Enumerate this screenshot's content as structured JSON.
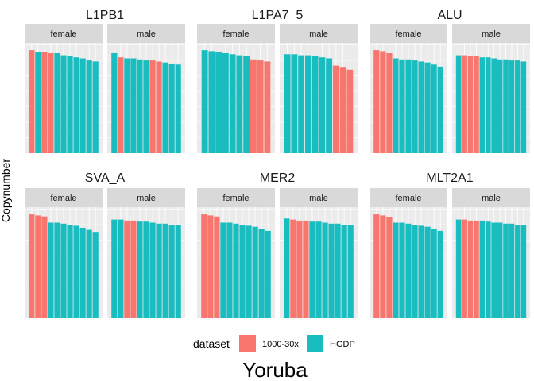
{
  "figure": {
    "title": "Yoruba",
    "ylabel": "Copynumber",
    "legend_title": "dataset",
    "legend_placement": "bottom"
  },
  "colors": {
    "1000-30x": "#F8766D",
    "HGDP": "#19BDC0",
    "panel_bg": "#EBEBEB",
    "strip_bg": "#D9D9D9",
    "grid": "#FFFFFF"
  },
  "chart_data": {
    "type": "bar",
    "note_units": "values are relative copy number, 0 to 1 of each panel's free y range (no ticks printed)",
    "ylim": [
      0,
      1.07
    ],
    "grid": true,
    "series": [
      {
        "name": "1000-30x"
      },
      {
        "name": "HGDP"
      }
    ],
    "facets": [
      {
        "title": "L1PB1",
        "strips": [
          {
            "label": "female",
            "values": [
              1.0,
              0.98,
              0.98,
              0.97,
              0.97,
              0.95,
              0.94,
              0.93,
              0.92,
              0.9,
              0.89
            ],
            "datasets": [
              "1000-30x",
              "HGDP",
              "1000-30x",
              "1000-30x",
              "HGDP",
              "HGDP",
              "HGDP",
              "HGDP",
              "HGDP",
              "HGDP",
              "HGDP"
            ]
          },
          {
            "label": "male",
            "values": [
              0.97,
              0.93,
              0.92,
              0.92,
              0.91,
              0.9,
              0.9,
              0.89,
              0.88,
              0.87,
              0.86
            ],
            "datasets": [
              "HGDP",
              "1000-30x",
              "HGDP",
              "HGDP",
              "HGDP",
              "HGDP",
              "1000-30x",
              "1000-30x",
              "HGDP",
              "HGDP",
              "HGDP"
            ]
          }
        ]
      },
      {
        "title": "L1PA7_5",
        "strips": [
          {
            "label": "female",
            "values": [
              1.0,
              0.99,
              0.98,
              0.97,
              0.96,
              0.95,
              0.94,
              0.91,
              0.9,
              0.89
            ],
            "datasets": [
              "HGDP",
              "HGDP",
              "HGDP",
              "HGDP",
              "HGDP",
              "HGDP",
              "HGDP",
              "1000-30x",
              "1000-30x",
              "1000-30x"
            ]
          },
          {
            "label": "male",
            "values": [
              0.96,
              0.96,
              0.95,
              0.95,
              0.94,
              0.93,
              0.92,
              0.85,
              0.83,
              0.81
            ],
            "datasets": [
              "HGDP",
              "HGDP",
              "HGDP",
              "HGDP",
              "HGDP",
              "HGDP",
              "HGDP",
              "1000-30x",
              "1000-30x",
              "1000-30x"
            ]
          }
        ]
      },
      {
        "title": "ALU",
        "strips": [
          {
            "label": "female",
            "values": [
              1.0,
              0.99,
              0.97,
              0.92,
              0.91,
              0.91,
              0.9,
              0.89,
              0.88,
              0.86,
              0.84
            ],
            "datasets": [
              "1000-30x",
              "1000-30x",
              "1000-30x",
              "HGDP",
              "HGDP",
              "HGDP",
              "HGDP",
              "HGDP",
              "HGDP",
              "HGDP",
              "HGDP"
            ]
          },
          {
            "label": "male",
            "values": [
              0.95,
              0.95,
              0.94,
              0.94,
              0.93,
              0.93,
              0.92,
              0.91,
              0.91,
              0.9,
              0.9,
              0.89
            ],
            "datasets": [
              "HGDP",
              "1000-30x",
              "1000-30x",
              "1000-30x",
              "HGDP",
              "HGDP",
              "HGDP",
              "HGDP",
              "HGDP",
              "HGDP",
              "HGDP",
              "HGDP"
            ]
          }
        ]
      },
      {
        "title": "SVA_A",
        "strips": [
          {
            "label": "female",
            "values": [
              1.0,
              0.99,
              0.98,
              0.92,
              0.92,
              0.91,
              0.9,
              0.89,
              0.87,
              0.85,
              0.83
            ],
            "datasets": [
              "1000-30x",
              "1000-30x",
              "1000-30x",
              "HGDP",
              "HGDP",
              "HGDP",
              "HGDP",
              "HGDP",
              "HGDP",
              "HGDP",
              "HGDP"
            ]
          },
          {
            "label": "male",
            "values": [
              0.95,
              0.95,
              0.94,
              0.94,
              0.93,
              0.93,
              0.92,
              0.91,
              0.91,
              0.9,
              0.9
            ],
            "datasets": [
              "HGDP",
              "HGDP",
              "1000-30x",
              "1000-30x",
              "HGDP",
              "HGDP",
              "HGDP",
              "HGDP",
              "HGDP",
              "HGDP",
              "HGDP"
            ]
          }
        ]
      },
      {
        "title": "MER2",
        "strips": [
          {
            "label": "female",
            "values": [
              1.0,
              0.99,
              0.98,
              0.92,
              0.92,
              0.91,
              0.9,
              0.89,
              0.88,
              0.86,
              0.84
            ],
            "datasets": [
              "1000-30x",
              "1000-30x",
              "1000-30x",
              "HGDP",
              "HGDP",
              "HGDP",
              "HGDP",
              "HGDP",
              "HGDP",
              "HGDP",
              "HGDP"
            ]
          },
          {
            "label": "male",
            "values": [
              0.96,
              0.95,
              0.94,
              0.94,
              0.93,
              0.93,
              0.92,
              0.91,
              0.91,
              0.9,
              0.9
            ],
            "datasets": [
              "HGDP",
              "1000-30x",
              "1000-30x",
              "1000-30x",
              "HGDP",
              "HGDP",
              "HGDP",
              "HGDP",
              "HGDP",
              "HGDP",
              "HGDP"
            ]
          }
        ]
      },
      {
        "title": "MLT2A1",
        "strips": [
          {
            "label": "female",
            "values": [
              1.0,
              0.99,
              0.97,
              0.92,
              0.92,
              0.91,
              0.9,
              0.89,
              0.88,
              0.86,
              0.84
            ],
            "datasets": [
              "1000-30x",
              "1000-30x",
              "1000-30x",
              "HGDP",
              "HGDP",
              "HGDP",
              "HGDP",
              "HGDP",
              "HGDP",
              "HGDP",
              "HGDP"
            ]
          },
          {
            "label": "male",
            "values": [
              0.95,
              0.95,
              0.94,
              0.94,
              0.94,
              0.93,
              0.92,
              0.92,
              0.91,
              0.91,
              0.9,
              0.9
            ],
            "datasets": [
              "HGDP",
              "1000-30x",
              "1000-30x",
              "1000-30x",
              "HGDP",
              "HGDP",
              "HGDP",
              "HGDP",
              "HGDP",
              "HGDP",
              "HGDP",
              "HGDP"
            ]
          }
        ]
      }
    ]
  }
}
